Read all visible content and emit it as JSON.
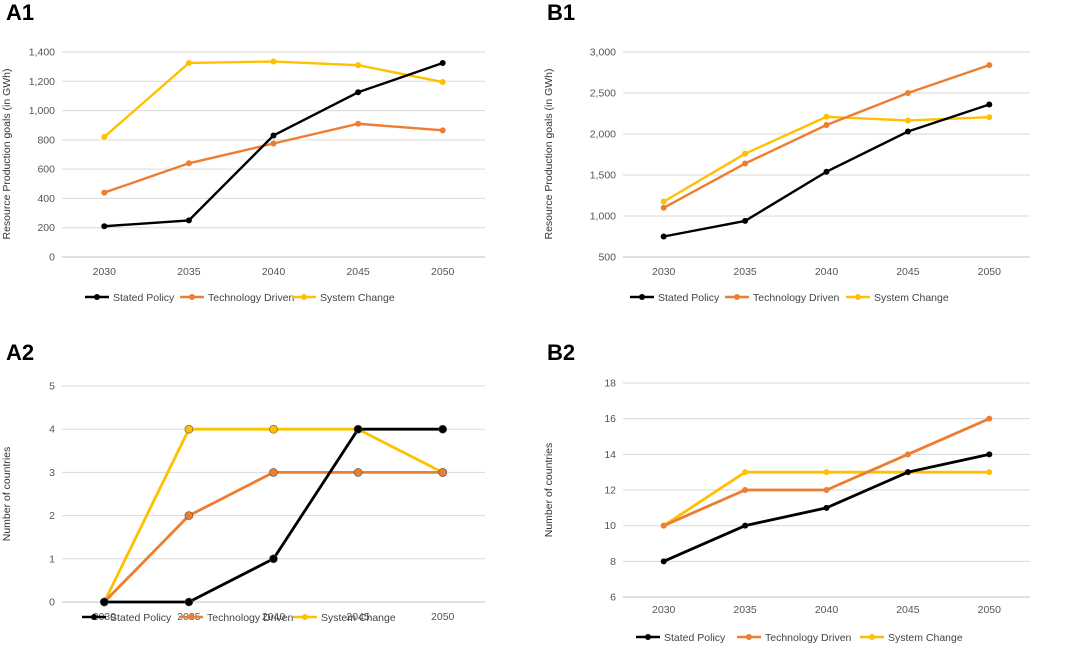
{
  "colors": {
    "stated_policy": "#000000",
    "technology_driven": "#ED7D31",
    "system_change": "#FFC000"
  },
  "chart_data": [
    {
      "id": "A1",
      "panel_label": "A1",
      "type": "line",
      "ylabel": "Resource Production goals (in GWh)",
      "categories": [
        "2030",
        "2035",
        "2040",
        "2045",
        "2050"
      ],
      "ylim": [
        0,
        1400
      ],
      "yticks": [
        0,
        200,
        400,
        600,
        800,
        1000,
        1200,
        1400
      ],
      "ytick_labels": [
        "0",
        "200",
        "400",
        "600",
        "800",
        "1,000",
        "1,200",
        "1,400"
      ],
      "grid": true,
      "legend_position": "bottom",
      "series": [
        {
          "name": "Stated Policy",
          "color_key": "stated_policy",
          "values": [
            210,
            250,
            830,
            1125,
            1325
          ]
        },
        {
          "name": "Technology Driven",
          "color_key": "technology_driven",
          "values": [
            440,
            640,
            775,
            910,
            865
          ]
        },
        {
          "name": "System Change",
          "color_key": "system_change",
          "values": [
            820,
            1325,
            1335,
            1310,
            1195
          ]
        }
      ]
    },
    {
      "id": "B1",
      "panel_label": "B1",
      "type": "line",
      "ylabel": "Resource Production goals (in GWh)",
      "categories": [
        "2030",
        "2035",
        "2040",
        "2045",
        "2050"
      ],
      "ylim": [
        500,
        3000
      ],
      "yticks": [
        500,
        1000,
        1500,
        2000,
        2500,
        3000
      ],
      "ytick_labels": [
        "500",
        "1,000",
        "1,500",
        "2,000",
        "2,500",
        "3,000"
      ],
      "grid": true,
      "legend_position": "bottom",
      "series": [
        {
          "name": "Stated Policy",
          "color_key": "stated_policy",
          "values": [
            750,
            940,
            1540,
            2030,
            2360
          ]
        },
        {
          "name": "Technology Driven",
          "color_key": "technology_driven",
          "values": [
            1100,
            1640,
            2110,
            2500,
            2840
          ]
        },
        {
          "name": "System Change",
          "color_key": "system_change",
          "values": [
            1175,
            1760,
            2210,
            2165,
            2205
          ]
        }
      ]
    },
    {
      "id": "A2",
      "panel_label": "A2",
      "type": "line",
      "ylabel": "Number of countries",
      "categories": [
        "2030",
        "2035",
        "2040",
        "2045",
        "2050"
      ],
      "ylim": [
        0,
        5
      ],
      "yticks": [
        0,
        1,
        2,
        3,
        4,
        5
      ],
      "ytick_labels": [
        "0",
        "1",
        "2",
        "3",
        "4",
        "5"
      ],
      "grid": true,
      "legend_position": "bottom",
      "series": [
        {
          "name": "Stated Policy",
          "color_key": "stated_policy",
          "values": [
            0,
            0,
            1,
            4,
            4
          ]
        },
        {
          "name": "Technology Driven",
          "color_key": "technology_driven",
          "values": [
            0,
            2,
            3,
            3,
            3
          ]
        },
        {
          "name": "System Change",
          "color_key": "system_change",
          "values": [
            0,
            4,
            4,
            4,
            3
          ]
        }
      ]
    },
    {
      "id": "B2",
      "panel_label": "B2",
      "type": "line",
      "ylabel": "Number of countries",
      "categories": [
        "2030",
        "2035",
        "2040",
        "2045",
        "2050"
      ],
      "ylim": [
        6,
        18
      ],
      "yticks": [
        6,
        8,
        10,
        12,
        14,
        16,
        18
      ],
      "ytick_labels": [
        "6",
        "8",
        "10",
        "12",
        "14",
        "16",
        "18"
      ],
      "grid": true,
      "legend_position": "bottom",
      "series": [
        {
          "name": "Stated Policy",
          "color_key": "stated_policy",
          "values": [
            8,
            10,
            11,
            13,
            14
          ]
        },
        {
          "name": "Technology Driven",
          "color_key": "technology_driven",
          "values": [
            10,
            12,
            12,
            14,
            16
          ]
        },
        {
          "name": "System Change",
          "color_key": "system_change",
          "values": [
            10,
            13,
            13,
            13,
            13
          ]
        }
      ]
    }
  ]
}
